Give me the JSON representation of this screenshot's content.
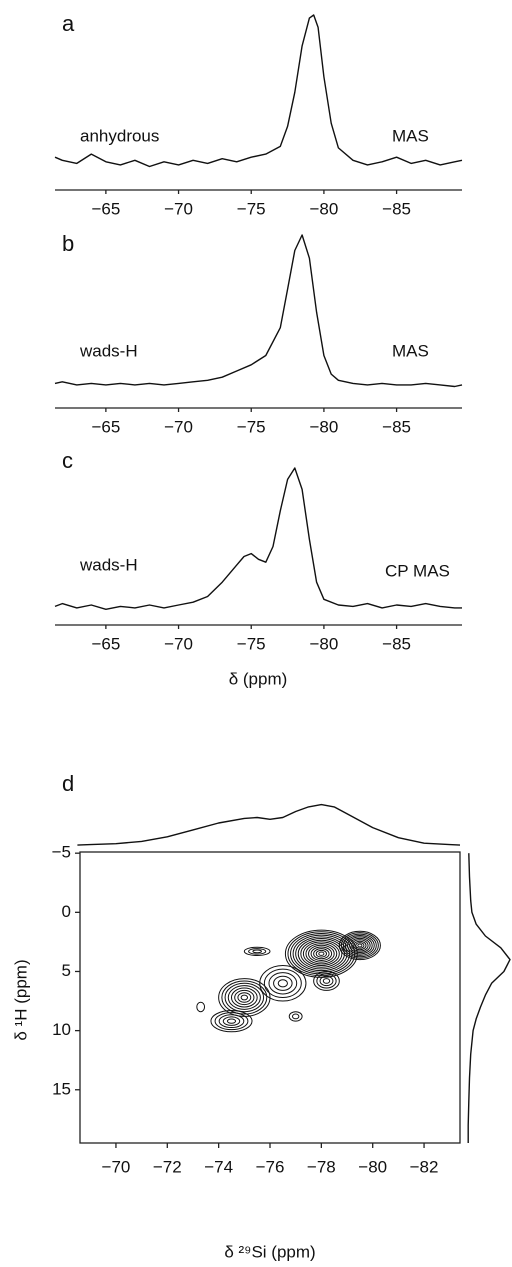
{
  "chart_data": [
    {
      "type": "line",
      "title": "a",
      "annotations": [
        "anhydrous",
        "MAS"
      ],
      "color": "#111111",
      "xlim": [
        -61.5,
        -89.5
      ],
      "ylim": [
        -10,
        100
      ],
      "xticks": [
        {
          "value": -65,
          "label": "−65"
        },
        {
          "value": -70,
          "label": "−70"
        },
        {
          "value": -75,
          "label": "−75"
        },
        {
          "value": -80,
          "label": "−80"
        },
        {
          "value": -85,
          "label": "−85"
        }
      ],
      "x": [
        -61.5,
        -62,
        -63,
        -64,
        -65,
        -66,
        -67,
        -68,
        -69,
        -70,
        -71,
        -72,
        -73,
        -74,
        -75,
        -76,
        -77,
        -77.5,
        -78,
        -78.5,
        -79,
        -79.3,
        -79.6,
        -80,
        -80.5,
        -81,
        -82,
        -83,
        -84,
        -85,
        -86,
        -87,
        -88,
        -89,
        -89.5
      ],
      "values": [
        8,
        6,
        4,
        10,
        5,
        3,
        6,
        2,
        5,
        3,
        6,
        4,
        7,
        5,
        8,
        10,
        15,
        28,
        50,
        80,
        98,
        100,
        92,
        60,
        30,
        14,
        6,
        3,
        5,
        8,
        4,
        6,
        3,
        5,
        6
      ]
    },
    {
      "type": "line",
      "title": "b",
      "annotations": [
        "wads-H",
        "MAS"
      ],
      "color": "#111111",
      "xlim": [
        -61.5,
        -89.5
      ],
      "ylim": [
        -10,
        100
      ],
      "xticks": [
        {
          "value": -65,
          "label": "−65"
        },
        {
          "value": -70,
          "label": "−70"
        },
        {
          "value": -75,
          "label": "−75"
        },
        {
          "value": -80,
          "label": "−80"
        },
        {
          "value": -85,
          "label": "−85"
        }
      ],
      "x": [
        -61.5,
        -62,
        -63,
        -64,
        -65,
        -66,
        -67,
        -68,
        -69,
        -70,
        -71,
        -72,
        -73,
        -74,
        -75,
        -76,
        -77,
        -77.5,
        -78,
        -78.5,
        -79,
        -79.5,
        -80,
        -80.5,
        -81,
        -82,
        -83,
        -84,
        -85,
        -86,
        -87,
        -88,
        -89,
        -89.5
      ],
      "values": [
        4,
        5,
        3,
        4,
        3,
        4,
        3,
        4,
        3,
        4,
        5,
        6,
        8,
        12,
        16,
        22,
        40,
        65,
        90,
        100,
        85,
        50,
        22,
        10,
        6,
        4,
        3,
        4,
        3,
        3,
        4,
        3,
        2,
        3
      ]
    },
    {
      "type": "line",
      "title": "c",
      "annotations": [
        "wads-H",
        "CP MAS"
      ],
      "xlabel": "δ (ppm)",
      "color": "#111111",
      "xlim": [
        -61.5,
        -89.5
      ],
      "ylim": [
        -10,
        100
      ],
      "xticks": [
        {
          "value": -65,
          "label": "−65"
        },
        {
          "value": -70,
          "label": "−70"
        },
        {
          "value": -75,
          "label": "−75"
        },
        {
          "value": -80,
          "label": "−80"
        },
        {
          "value": -85,
          "label": "−85"
        }
      ],
      "x": [
        -61.5,
        -62,
        -63,
        -64,
        -65,
        -66,
        -67,
        -68,
        -69,
        -70,
        -71,
        -72,
        -73,
        -74,
        -74.5,
        -75,
        -75.5,
        -76,
        -76.5,
        -77,
        -77.5,
        -78,
        -78.5,
        -79,
        -79.5,
        -80,
        -81,
        -82,
        -83,
        -84,
        -85,
        -86,
        -87,
        -88,
        -89,
        -89.5
      ],
      "values": [
        3,
        5,
        2,
        4,
        1,
        3,
        2,
        4,
        2,
        4,
        6,
        10,
        20,
        32,
        38,
        40,
        36,
        34,
        45,
        70,
        92,
        100,
        85,
        50,
        20,
        8,
        4,
        3,
        5,
        2,
        4,
        3,
        5,
        3,
        2,
        2
      ]
    },
    {
      "type": "contour",
      "title": "d",
      "xlabel": "δ ²⁹Si (ppm)",
      "ylabel": "δ ¹H (ppm)",
      "color": "#111111",
      "xlim": [
        -68.6,
        -83.4
      ],
      "ylim": [
        -5.1,
        19.5
      ],
      "xticks": [
        {
          "value": -70,
          "label": "−70"
        },
        {
          "value": -72,
          "label": "−72"
        },
        {
          "value": -74,
          "label": "−74"
        },
        {
          "value": -76,
          "label": "−76"
        },
        {
          "value": -78,
          "label": "−78"
        },
        {
          "value": -80,
          "label": "−80"
        },
        {
          "value": -82,
          "label": "−82"
        }
      ],
      "yticks": [
        {
          "value": -5,
          "label": "−5"
        },
        0,
        5,
        10,
        15
      ],
      "peaks": [
        {
          "x": -78,
          "y": 3.5,
          "wx": 1.4,
          "wy": 2.0,
          "levels": 14
        },
        {
          "x": -79.5,
          "y": 2.8,
          "wx": 0.8,
          "wy": 1.2,
          "levels": 10
        },
        {
          "x": -75,
          "y": 7.2,
          "wx": 1.0,
          "wy": 1.6,
          "levels": 8
        },
        {
          "x": -74.5,
          "y": 9.2,
          "wx": 0.8,
          "wy": 0.9,
          "levels": 5
        },
        {
          "x": -76.5,
          "y": 6,
          "wx": 0.9,
          "wy": 1.5,
          "levels": 5
        },
        {
          "x": -78.2,
          "y": 5.8,
          "wx": 0.5,
          "wy": 0.8,
          "levels": 4
        },
        {
          "x": -75.5,
          "y": 3.3,
          "wx": 0.5,
          "wy": 0.35,
          "levels": 3
        },
        {
          "x": -77,
          "y": 8.8,
          "wx": 0.25,
          "wy": 0.4,
          "levels": 2
        },
        {
          "x": -73.3,
          "y": 8,
          "wx": 0.15,
          "wy": 0.4,
          "levels": 1
        }
      ],
      "top_projection": {
        "ylim": [
          0,
          100
        ],
        "x": [
          -68.5,
          -69,
          -70,
          -71,
          -72,
          -73,
          -74,
          -75,
          -75.5,
          -76,
          -76.5,
          -77,
          -77.5,
          -78,
          -78.5,
          -79,
          -80,
          -81,
          -82,
          -83,
          -83.4
        ],
        "values": [
          2,
          3,
          5,
          10,
          20,
          35,
          50,
          60,
          62,
          58,
          62,
          75,
          85,
          90,
          85,
          70,
          40,
          18,
          6,
          3,
          2
        ]
      },
      "side_projection": {
        "ylim": [
          0,
          70
        ],
        "x": [
          -5,
          -3,
          -1,
          0,
          1,
          2,
          3,
          4,
          5,
          6,
          7,
          8,
          9,
          10,
          12,
          14,
          16,
          18,
          19.5
        ],
        "values": [
          3,
          4,
          6,
          8,
          15,
          30,
          55,
          70,
          60,
          40,
          30,
          22,
          15,
          10,
          6,
          4,
          3,
          2,
          2
        ]
      }
    }
  ]
}
